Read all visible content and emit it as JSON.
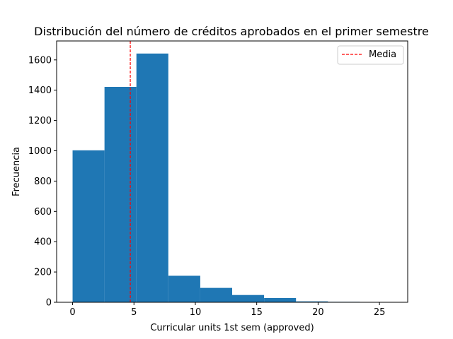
{
  "chart_data": {
    "type": "bar",
    "subtype": "histogram",
    "title": "Distribución del número de créditos aprobados en el primer semestre",
    "xlabel": "Curricular units 1st sem (approved)",
    "ylabel": "Frecuencia",
    "xlim": [
      -1.3,
      27.3
    ],
    "ylim": [
      0,
      1725
    ],
    "xticks": [
      0,
      5,
      10,
      15,
      20,
      25
    ],
    "yticks": [
      0,
      200,
      400,
      600,
      800,
      1000,
      1200,
      1400,
      1600
    ],
    "bin_edges": [
      0,
      2.6,
      5.2,
      7.8,
      10.4,
      13.0,
      15.6,
      18.2,
      20.8,
      23.4,
      26.0
    ],
    "counts": [
      1003,
      1422,
      1642,
      175,
      95,
      48,
      28,
      6,
      3,
      2
    ],
    "bar_color": "#1f77b4",
    "mean": {
      "value": 4.7,
      "label": "Media",
      "color": "#ff0000",
      "style": "dashed"
    },
    "legend": {
      "position": "upper-right",
      "entries": [
        "Media"
      ]
    },
    "grid": false
  }
}
